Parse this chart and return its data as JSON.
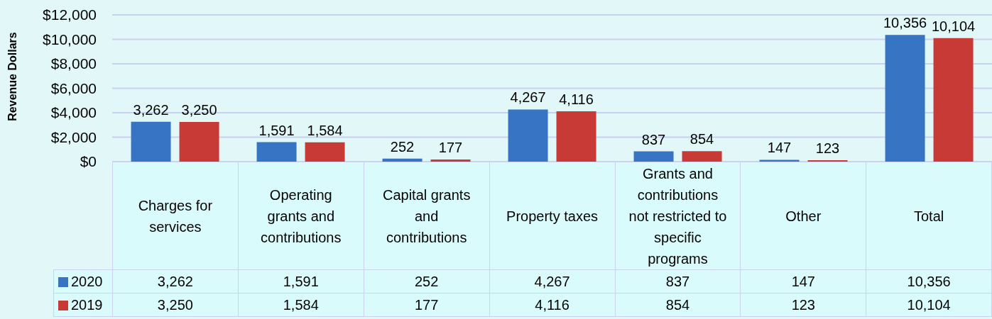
{
  "chart_data": {
    "type": "bar",
    "ylabel": "Revenue Dollars",
    "categories": [
      "Charges for services",
      "Operating grants and contributions",
      "Capital grants and contributions",
      "Property taxes",
      "Grants and contributions not restricted to specific programs",
      "Other",
      "Total"
    ],
    "series": [
      {
        "name": "2020",
        "color": "#3774c4",
        "values": [
          3262,
          1591,
          252,
          4267,
          837,
          147,
          10356
        ],
        "value_labels": [
          "3,262",
          "1,591",
          "252",
          "4,267",
          "837",
          "147",
          "10,356"
        ]
      },
      {
        "name": "2019",
        "color": "#c83a36",
        "values": [
          3250,
          1584,
          177,
          4116,
          854,
          123,
          10104
        ],
        "value_labels": [
          "3,250",
          "1,584",
          "177",
          "4,116",
          "854",
          "123",
          "10,104"
        ]
      }
    ],
    "ylim": [
      0,
      12000
    ],
    "yticks": [
      {
        "value": 0,
        "label": "$0"
      },
      {
        "value": 2000,
        "label": "$2,000"
      },
      {
        "value": 4000,
        "label": "$4,000"
      },
      {
        "value": 6000,
        "label": "$6,000"
      },
      {
        "value": 8000,
        "label": "$8,000"
      },
      {
        "value": 10000,
        "label": "$10,000"
      },
      {
        "value": 12000,
        "label": "$12,000"
      }
    ],
    "grid": "y",
    "legend": "bottom"
  }
}
